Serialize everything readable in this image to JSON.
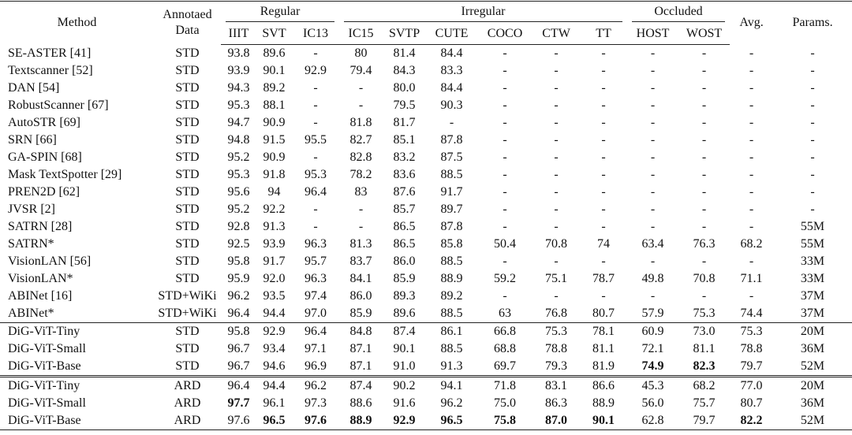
{
  "table": {
    "header": {
      "method": "Method",
      "data": "Annotaed Data",
      "groups": [
        {
          "label": "Regular",
          "columns": [
            "IIIT",
            "SVT",
            "IC13"
          ]
        },
        {
          "label": "Irregular",
          "columns": [
            "IC15",
            "SVTP",
            "CUTE",
            "COCO",
            "CTW",
            "TT"
          ]
        },
        {
          "label": "Occluded",
          "columns": [
            "HOST",
            "WOST"
          ]
        }
      ],
      "avg": "Avg.",
      "params": "Params."
    },
    "sections": [
      [
        [
          "SE-ASTER [41]",
          "STD",
          "93.8",
          "89.6",
          "-",
          "80",
          "81.4",
          "84.4",
          "-",
          "-",
          "-",
          "-",
          "-",
          "-",
          "-"
        ],
        [
          "Textscanner [52]",
          "STD",
          "93.9",
          "90.1",
          "92.9",
          "79.4",
          "84.3",
          "83.3",
          "-",
          "-",
          "-",
          "-",
          "-",
          "-",
          "-"
        ],
        [
          "DAN [54]",
          "STD",
          "94.3",
          "89.2",
          "-",
          "-",
          "80.0",
          "84.4",
          "-",
          "-",
          "-",
          "-",
          "-",
          "-",
          "-"
        ],
        [
          "RobustScanner [67]",
          "STD",
          "95.3",
          "88.1",
          "-",
          "-",
          "79.5",
          "90.3",
          "-",
          "-",
          "-",
          "-",
          "-",
          "-",
          "-"
        ],
        [
          "AutoSTR [69]",
          "STD",
          "94.7",
          "90.9",
          "-",
          "81.8",
          "81.7",
          "-",
          "-",
          "-",
          "-",
          "-",
          "-",
          "-",
          "-"
        ],
        [
          "SRN [66]",
          "STD",
          "94.8",
          "91.5",
          "95.5",
          "82.7",
          "85.1",
          "87.8",
          "-",
          "-",
          "-",
          "-",
          "-",
          "-",
          "-"
        ],
        [
          "GA-SPIN [68]",
          "STD",
          "95.2",
          "90.9",
          "-",
          "82.8",
          "83.2",
          "87.5",
          "-",
          "-",
          "-",
          "-",
          "-",
          "-",
          "-"
        ],
        [
          "Mask TextSpotter [29]",
          "STD",
          "95.3",
          "91.8",
          "95.3",
          "78.2",
          "83.6",
          "88.5",
          "-",
          "-",
          "-",
          "-",
          "-",
          "-",
          "-"
        ],
        [
          "PREN2D [62]",
          "STD",
          "95.6",
          "94",
          "96.4",
          "83",
          "87.6",
          "91.7",
          "-",
          "-",
          "-",
          "-",
          "-",
          "-",
          "-"
        ],
        [
          "JVSR [2]",
          "STD",
          "95.2",
          "92.2",
          "-",
          "-",
          "85.7",
          "89.7",
          "-",
          "-",
          "-",
          "-",
          "-",
          "-",
          "-"
        ],
        [
          "SATRN [28]",
          "STD",
          "92.8",
          "91.3",
          "-",
          "-",
          "86.5",
          "87.8",
          "-",
          "-",
          "-",
          "-",
          "-",
          "-",
          "55M"
        ],
        [
          "SATRN*",
          "STD",
          "92.5",
          "93.9",
          "96.3",
          "81.3",
          "86.5",
          "85.8",
          "50.4",
          "70.8",
          "74",
          "63.4",
          "76.3",
          "68.2",
          "55M"
        ],
        [
          "VisionLAN [56]",
          "STD",
          "95.8",
          "91.7",
          "95.7",
          "83.7",
          "86.0",
          "88.5",
          "-",
          "-",
          "-",
          "-",
          "-",
          "-",
          "33M"
        ],
        [
          "VisionLAN*",
          "STD",
          "95.9",
          "92.0",
          "96.3",
          "84.1",
          "85.9",
          "88.9",
          "59.2",
          "75.1",
          "78.7",
          "49.8",
          "70.8",
          "71.1",
          "33M"
        ],
        [
          "ABINet [16]",
          "STD+WiKi",
          "96.2",
          "93.5",
          "97.4",
          "86.0",
          "89.3",
          "89.2",
          "-",
          "-",
          "-",
          "-",
          "-",
          "-",
          "37M"
        ],
        [
          "ABINet*",
          "STD+WiKi",
          "96.4",
          "94.4",
          "97.0",
          "85.9",
          "89.6",
          "88.5",
          "63",
          "76.8",
          "80.7",
          "57.9",
          "75.3",
          "74.4",
          "37M"
        ]
      ],
      [
        [
          "DiG-ViT-Tiny",
          "STD",
          "95.8",
          "92.9",
          "96.4",
          "84.8",
          "87.4",
          "86.1",
          "66.8",
          "75.3",
          "78.1",
          "60.9",
          "73.0",
          "75.3",
          "20M"
        ],
        [
          "DiG-ViT-Small",
          "STD",
          "96.7",
          "93.4",
          "97.1",
          "87.1",
          "90.1",
          "88.5",
          "68.8",
          "78.8",
          "81.1",
          "72.1",
          "81.1",
          "78.8",
          "36M"
        ],
        [
          "DiG-ViT-Base",
          "STD",
          "96.7",
          "94.6",
          "96.9",
          "87.1",
          "91.0",
          "91.3",
          "69.7",
          "79.3",
          "81.9",
          {
            "text": "74.9",
            "bold": true
          },
          {
            "text": "82.3",
            "bold": true
          },
          "79.7",
          "52M"
        ]
      ],
      [
        [
          "DiG-ViT-Tiny",
          "ARD",
          "96.4",
          "94.4",
          "96.2",
          "87.4",
          "90.2",
          "94.1",
          "71.8",
          "83.1",
          "86.6",
          "45.3",
          "68.2",
          "77.0",
          "20M"
        ],
        [
          "DiG-ViT-Small",
          "ARD",
          {
            "text": "97.7",
            "bold": true
          },
          "96.1",
          "97.3",
          "88.6",
          "91.6",
          "96.2",
          "75.0",
          "86.3",
          "88.9",
          "56.0",
          "75.7",
          "80.7",
          "36M"
        ],
        [
          "DiG-ViT-Base",
          "ARD",
          "97.6",
          {
            "text": "96.5",
            "bold": true
          },
          {
            "text": "97.6",
            "bold": true
          },
          {
            "text": "88.9",
            "bold": true
          },
          {
            "text": "92.9",
            "bold": true
          },
          {
            "text": "96.5",
            "bold": true
          },
          {
            "text": "75.8",
            "bold": true
          },
          {
            "text": "87.0",
            "bold": true
          },
          {
            "text": "90.1",
            "bold": true
          },
          "62.8",
          "79.7",
          {
            "text": "82.2",
            "bold": true
          },
          "52M"
        ]
      ]
    ]
  }
}
